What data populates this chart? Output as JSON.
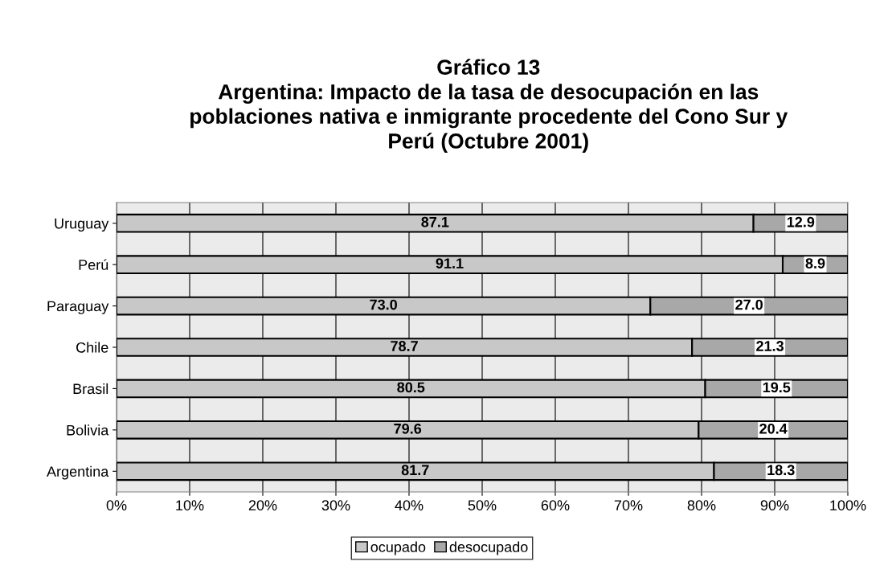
{
  "chart_data": {
    "type": "bar",
    "orientation": "horizontal",
    "stacked": true,
    "title": "Gráfico 13\nArgentina: Impacto de la tasa de desocupación en las\npoblaciones nativa e inmigrante procedente del Cono Sur y\nPerú (Octubre 2001)",
    "categories": [
      "Uruguay",
      "Perú",
      "Paraguay",
      "Chile",
      "Brasil",
      "Bolivia",
      "Argentina"
    ],
    "series": [
      {
        "name": "ocupado",
        "color": "#c8c8c8",
        "values": [
          87.1,
          91.1,
          73.0,
          78.7,
          80.5,
          79.6,
          81.7
        ],
        "value_labels": [
          "87.1",
          "91.1",
          "73.0",
          "78.7",
          "80.5",
          "79.6",
          "81.7"
        ]
      },
      {
        "name": "desocupado",
        "color": "#a8a8a8",
        "values": [
          12.9,
          8.9,
          27.0,
          21.3,
          19.5,
          20.4,
          18.3
        ],
        "value_labels": [
          "12.9",
          "8.9",
          "27.0",
          "21.3",
          "19.5",
          "20.4",
          "18.3"
        ]
      }
    ],
    "xlim": [
      0,
      100
    ],
    "xticks": [
      {
        "value": 0,
        "label": "0%"
      },
      {
        "value": 10,
        "label": "10%"
      },
      {
        "value": 20,
        "label": "20%"
      },
      {
        "value": 30,
        "label": "30%"
      },
      {
        "value": 40,
        "label": "40%"
      },
      {
        "value": 50,
        "label": "50%"
      },
      {
        "value": 60,
        "label": "60%"
      },
      {
        "value": 70,
        "label": "70%"
      },
      {
        "value": 80,
        "label": "80%"
      },
      {
        "value": 90,
        "label": "90%"
      },
      {
        "value": 100,
        "label": "100%"
      }
    ],
    "grid": "x",
    "legend": "bottom"
  }
}
